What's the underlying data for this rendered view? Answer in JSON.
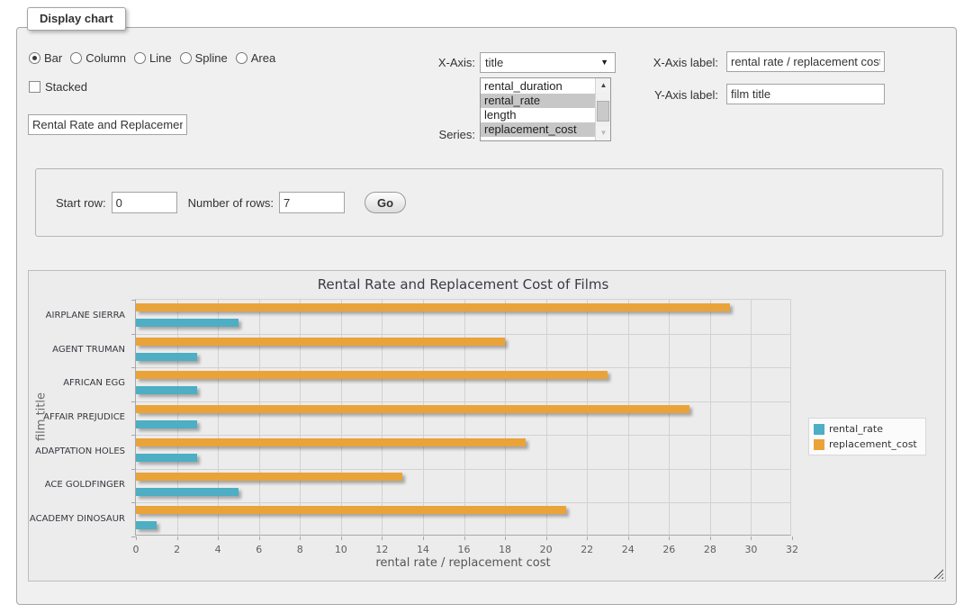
{
  "panel": {
    "legend": "Display chart"
  },
  "chart_type_options": [
    {
      "label": "Bar",
      "selected": true
    },
    {
      "label": "Column",
      "selected": false
    },
    {
      "label": "Line",
      "selected": false
    },
    {
      "label": "Spline",
      "selected": false
    },
    {
      "label": "Area",
      "selected": false
    }
  ],
  "stacked": {
    "label": "Stacked",
    "checked": false
  },
  "title_input": {
    "value": "Rental Rate and Replacement Cost of Films"
  },
  "x_axis_select": {
    "caption": "X-Axis:",
    "selected": "title"
  },
  "series_select": {
    "caption": "Series:",
    "options": [
      {
        "label": "rental_duration",
        "selected": false
      },
      {
        "label": "rental_rate",
        "selected": true
      },
      {
        "label": "length",
        "selected": false
      },
      {
        "label": "replacement_cost",
        "selected": true
      }
    ]
  },
  "x_axis_label": {
    "caption": "X-Axis label:",
    "value": "rental rate / replacement cost"
  },
  "y_axis_label": {
    "caption": "Y-Axis label:",
    "value": "film title"
  },
  "row_controls": {
    "start_row_caption": "Start row:",
    "start_row_value": "0",
    "num_rows_caption": "Number of rows:",
    "num_rows_value": "7",
    "go_label": "Go"
  },
  "chart_data": {
    "type": "bar",
    "title": "Rental Rate and Replacement Cost of Films",
    "xlabel": "rental rate / replacement cost",
    "ylabel": "film title",
    "categories": [
      "AIRPLANE SIERRA",
      "AGENT TRUMAN",
      "AFRICAN EGG",
      "AFFAIR PREJUDICE",
      "ADAPTATION HOLES",
      "ACE GOLDFINGER",
      "ACADEMY DINOSAUR"
    ],
    "series": [
      {
        "name": "rental_rate",
        "color": "#4DAEC4",
        "values": [
          4.99,
          2.99,
          2.99,
          2.99,
          2.99,
          4.99,
          0.99
        ]
      },
      {
        "name": "replacement_cost",
        "color": "#EAA339",
        "values": [
          28.99,
          17.99,
          22.99,
          26.99,
          18.99,
          12.99,
          20.99
        ]
      }
    ],
    "xlim": [
      0,
      32
    ],
    "ticks": [
      0,
      2,
      4,
      6,
      8,
      10,
      12,
      14,
      16,
      18,
      20,
      22,
      24,
      26,
      28,
      30,
      32
    ],
    "grid": true,
    "legend_position": "right",
    "bar_order_in_band": [
      "replacement_cost",
      "rental_rate"
    ]
  }
}
